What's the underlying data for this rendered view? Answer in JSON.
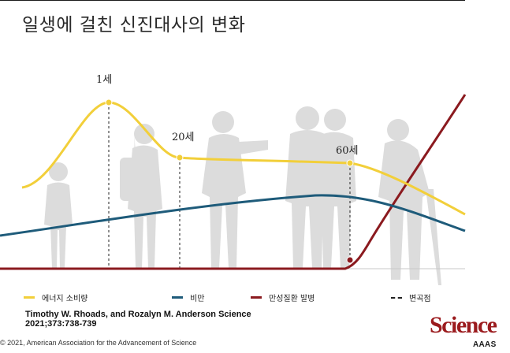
{
  "title": "일생에 걸친 신진대사의 변화",
  "milestones": [
    {
      "label": "1세"
    },
    {
      "label": "20세"
    },
    {
      "label": "60세"
    }
  ],
  "legend": [
    {
      "label": "에너지 소비량",
      "color": "#f2cf3a"
    },
    {
      "label": "비만",
      "color": "#1e5b7a"
    },
    {
      "label": "만성질환 발병",
      "color": "#8b1a1f"
    },
    {
      "label": "변곡점",
      "color": "#222222"
    }
  ],
  "citation": {
    "line1": "Timothy W. Rhoads, and Rozalyn M. Anderson Science",
    "line2": "2021;373:738-739"
  },
  "copyright": "© 2021, American Association for the Advancement of Science",
  "brand": "Science",
  "brand_sub": "AAAS",
  "colors": {
    "figure": "#dcdcdc",
    "energy": "#f2cf3a",
    "obesity": "#1e5b7a",
    "disease": "#8b1a1f"
  }
}
